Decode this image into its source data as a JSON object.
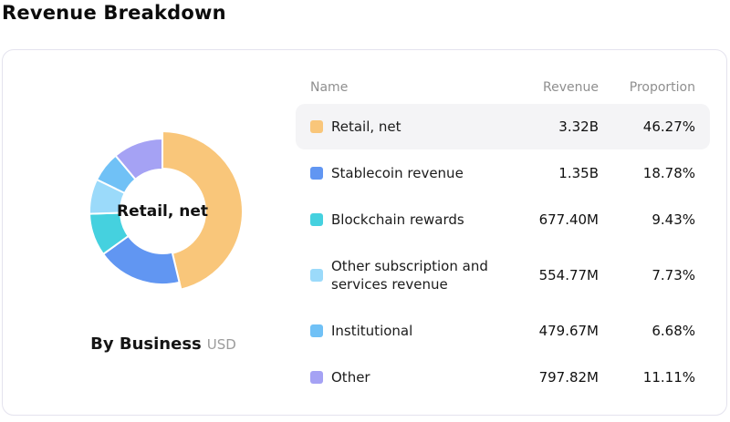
{
  "page": {
    "title": "Revenue Breakdown"
  },
  "chart_data": {
    "type": "pie",
    "subtype": "donut",
    "title": "By Business",
    "unit": "USD",
    "center_label": "Retail, net",
    "start_angle_deg": 0,
    "direction": "clockwise",
    "legend_position": "right-table",
    "series": [
      {
        "name": "Retail, net",
        "revenue": "3.32B",
        "proportion": "46.27%",
        "value": 46.27,
        "color": "#f9c67a",
        "highlighted": true
      },
      {
        "name": "Stablecoin revenue",
        "revenue": "1.35B",
        "proportion": "18.78%",
        "value": 18.78,
        "color": "#6196f2",
        "highlighted": false
      },
      {
        "name": "Blockchain rewards",
        "revenue": "677.40M",
        "proportion": "9.43%",
        "value": 9.43,
        "color": "#45d1df",
        "highlighted": false
      },
      {
        "name": "Other subscription and services revenue",
        "revenue": "554.77M",
        "proportion": "7.73%",
        "value": 7.73,
        "color": "#9bdafa",
        "highlighted": false
      },
      {
        "name": "Institutional",
        "revenue": "479.67M",
        "proportion": "6.68%",
        "value": 6.68,
        "color": "#70c1f6",
        "highlighted": false
      },
      {
        "name": "Other",
        "revenue": "797.82M",
        "proportion": "11.11%",
        "value": 11.11,
        "color": "#a5a2f4",
        "highlighted": false
      }
    ]
  },
  "table": {
    "headers": {
      "name": "Name",
      "revenue": "Revenue",
      "proportion": "Proportion"
    }
  },
  "style": {
    "highlight_row_bg": "#f4f4f6",
    "card_border": "#e4e3ee",
    "header_text": "#8f8f8f"
  }
}
